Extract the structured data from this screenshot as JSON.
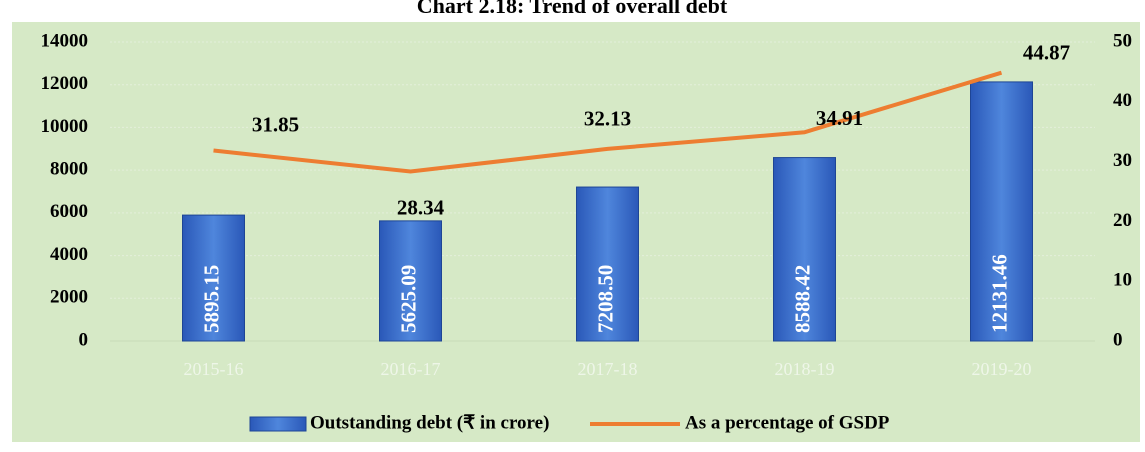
{
  "chart_data": {
    "type": "bar_line",
    "title": "Chart 2.18: Trend of overall debt",
    "categories": [
      "2015-16",
      "2016-17",
      "2017-18",
      "2018-19",
      "2019-20"
    ],
    "series": [
      {
        "name": "Outstanding debt (₹ in crore)",
        "type": "bar",
        "color": "#2f63c4",
        "values": [
          5895.15,
          5625.09,
          7208.5,
          8588.42,
          12131.46
        ],
        "value_labels": [
          "5895.15",
          "5625.09",
          "7208.50",
          "8588.42",
          "12131.46"
        ]
      },
      {
        "name": "As a percentage of GSDP",
        "type": "line",
        "axis": "y2",
        "color": "#ed7d31",
        "values": [
          31.85,
          28.34,
          32.13,
          34.91,
          44.87
        ]
      }
    ],
    "ylim": [
      0,
      14000
    ],
    "yticks": [
      0,
      2000,
      4000,
      6000,
      8000,
      10000,
      12000,
      14000
    ],
    "y2lim": [
      0,
      50
    ],
    "y2ticks": [
      0,
      10,
      20,
      30,
      40,
      50
    ],
    "grid": true,
    "legend": "bottom"
  }
}
